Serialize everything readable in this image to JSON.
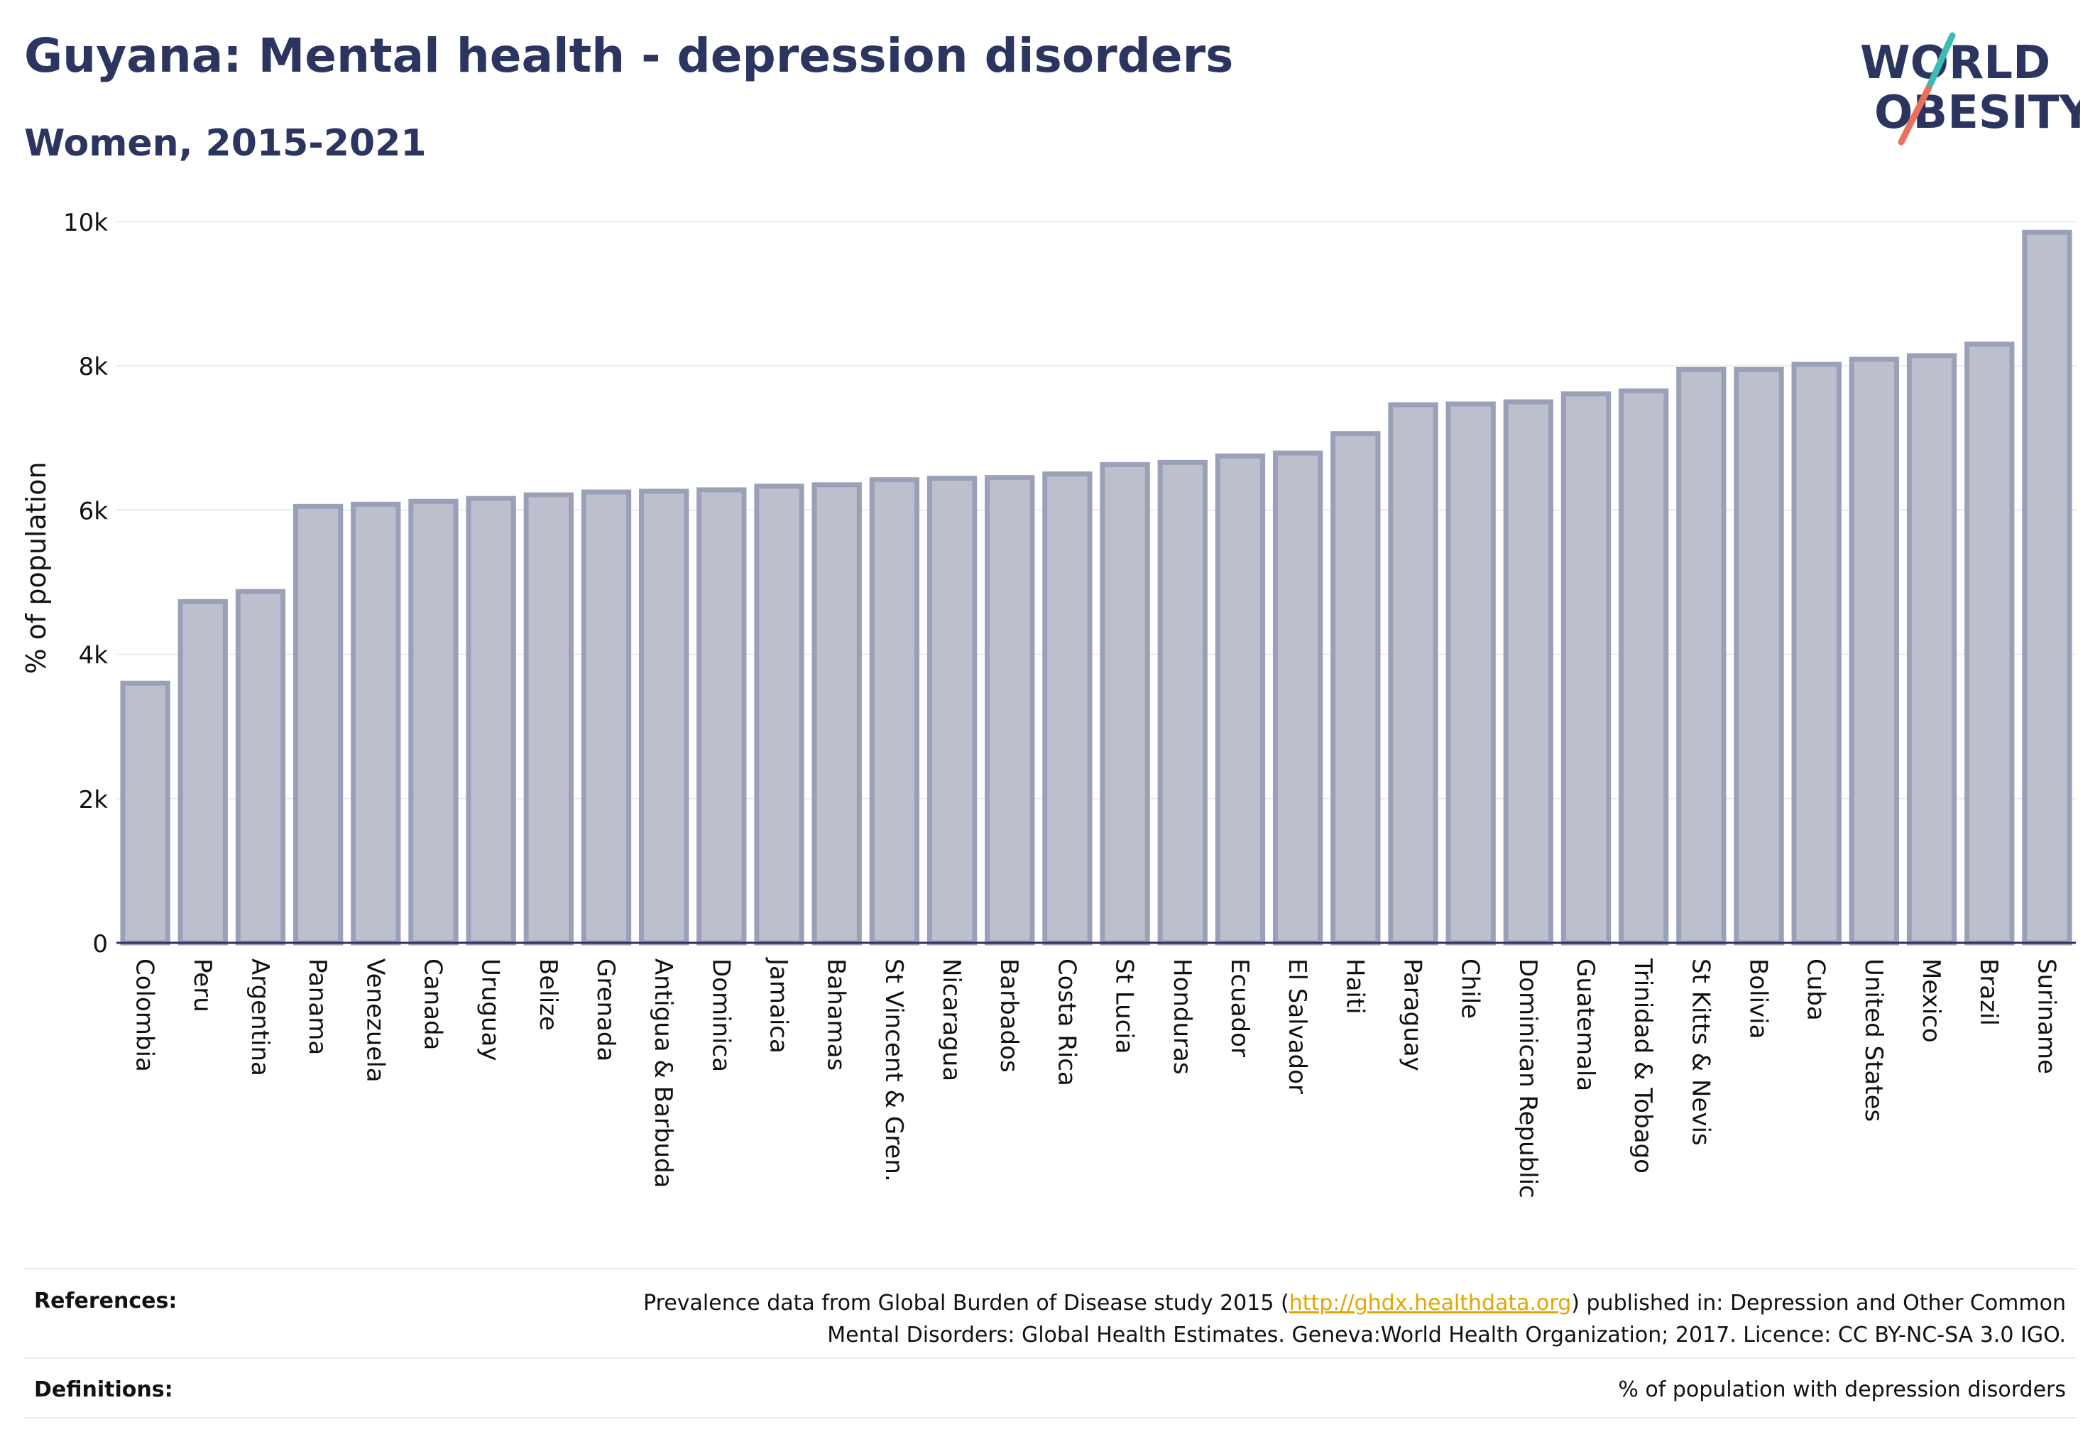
{
  "header": {
    "title": "Guyana: Mental health - depression disorders",
    "subtitle": "Women, 2015-2021"
  },
  "logo": {
    "line1": "WORLD",
    "line2": "OBESITY",
    "text_color": "#2b3560",
    "slash_top_color": "#3cbcb4",
    "slash_bottom_color": "#e8705c"
  },
  "chart_data": {
    "type": "bar",
    "title": "Guyana: Mental health - depression disorders",
    "subtitle": "Women, 2015-2021",
    "xlabel": "",
    "ylabel": "% of population",
    "ylim": [
      0,
      10000
    ],
    "yticks": [
      0,
      2000,
      4000,
      6000,
      8000,
      10000
    ],
    "ytick_labels": [
      "0",
      "2k",
      "4k",
      "6k",
      "8k",
      "10k"
    ],
    "grid": true,
    "bar_fill": "#bcc0cd",
    "bar_stroke": "#9aa0b8",
    "categories": [
      "Colombia",
      "Peru",
      "Argentina",
      "Panama",
      "Venezuela",
      "Canada",
      "Uruguay",
      "Belize",
      "Grenada",
      "Antigua & Barbuda",
      "Dominica",
      "Jamaica",
      "Bahamas",
      "St Vincent & Gren.",
      "Nicaragua",
      "Barbados",
      "Costa Rica",
      "St Lucia",
      "Honduras",
      "Ecuador",
      "El Salvador",
      "Haiti",
      "Paraguay",
      "Chile",
      "Dominican Republic",
      "Guatemala",
      "Trinidad & Tobago",
      "St Kitts & Nevis",
      "Bolivia",
      "Cuba",
      "United States",
      "Mexico",
      "Brazil",
      "Suriname"
    ],
    "values": [
      3600,
      4730,
      4870,
      6050,
      6080,
      6120,
      6160,
      6210,
      6250,
      6260,
      6280,
      6330,
      6350,
      6420,
      6440,
      6450,
      6500,
      6630,
      6660,
      6750,
      6790,
      7060,
      7460,
      7470,
      7500,
      7610,
      7650,
      7950,
      7950,
      8020,
      8090,
      8140,
      8300,
      9850
    ]
  },
  "footer": {
    "references_label": "References:",
    "references_text_before": "Prevalence data from Global Burden of Disease study 2015 (",
    "references_link": "http://ghdx.healthdata.org",
    "references_text_after": ") published in: Depression and Other Common Mental Disorders: Global Health Estimates. Geneva:World Health Organization; 2017. Licence: CC BY-NC-SA 3.0 IGO.",
    "definitions_label": "Definitions:",
    "definitions_text": "% of population with depression disorders"
  }
}
